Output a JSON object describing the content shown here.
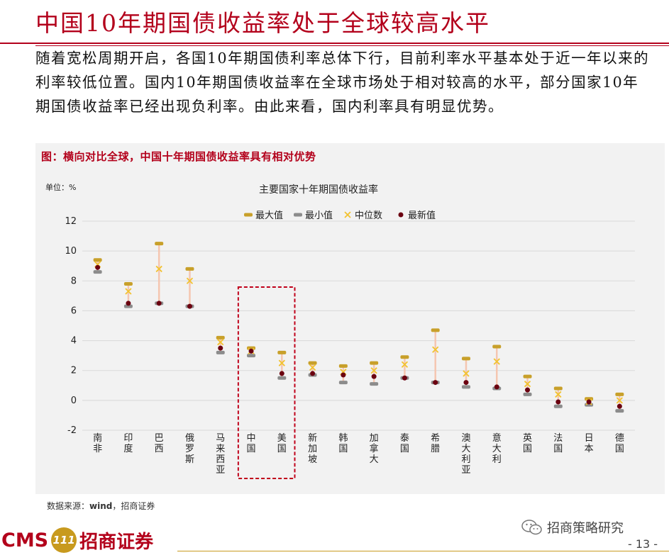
{
  "header": {
    "title": "中国10年期国债收益率处于全球较高水平"
  },
  "intro": {
    "paragraph": "随着宽松周期开启，各国10年期国债利率总体下行，目前利率水平基本处于近一年以来的利率较低位置。国内10年期国债收益率在全球市场处于相对较高的水平，部分国家10年期国债收益率已经出现负利率。由此来看，国内利率具有明显优势。"
  },
  "figure": {
    "caption": "图：横向对比全球，中国十年期国债收益率具有相对优势",
    "unit": "单位：%",
    "source_prefix": "数据来源：",
    "source_bold": "wind",
    "source_suffix": "，招商证券"
  },
  "chart_data": {
    "type": "scatter",
    "title": "主要国家十年期国债收益率",
    "ylim": [
      -2,
      12
    ],
    "yticks": [
      -2,
      0,
      2,
      4,
      6,
      8,
      10,
      12
    ],
    "grid": true,
    "legend_position": "top",
    "categories": [
      "南非",
      "印度",
      "巴西",
      "俄罗斯",
      "马来西亚",
      "中国",
      "美国",
      "新加坡",
      "韩国",
      "加拿大",
      "泰国",
      "希腊",
      "澳大利亚",
      "意大利",
      "英国",
      "法国",
      "日本",
      "德国"
    ],
    "series": [
      {
        "name": "最大值",
        "values": [
          9.4,
          7.8,
          10.5,
          8.8,
          4.2,
          3.5,
          3.2,
          2.5,
          2.3,
          2.5,
          2.9,
          4.7,
          2.8,
          3.6,
          1.6,
          0.8,
          0.1,
          0.4
        ]
      },
      {
        "name": "最小值",
        "values": [
          8.6,
          6.3,
          6.5,
          6.3,
          3.2,
          3.0,
          1.5,
          1.7,
          1.2,
          1.1,
          1.5,
          1.2,
          0.9,
          0.8,
          0.4,
          -0.4,
          -0.3,
          -0.7
        ]
      },
      {
        "name": "中位数",
        "values": [
          9.1,
          7.3,
          8.8,
          8.0,
          3.9,
          3.3,
          2.5,
          2.2,
          1.9,
          2.0,
          2.4,
          3.4,
          1.8,
          2.6,
          1.1,
          0.4,
          -0.1,
          0.0
        ]
      },
      {
        "name": "最新值",
        "values": [
          8.9,
          6.5,
          6.5,
          6.3,
          3.5,
          3.3,
          1.8,
          1.8,
          1.7,
          1.6,
          1.5,
          1.2,
          1.2,
          0.9,
          0.7,
          -0.1,
          -0.1,
          -0.4
        ]
      }
    ],
    "highlight_categories": [
      "中国",
      "美国"
    ],
    "colors": {
      "max": "#c8a02a",
      "min": "#8c8c8c",
      "median": "#f2c230",
      "latest": "#6b0010",
      "range_line": "#f5c6b0",
      "highlight_box": "#c0001a"
    }
  },
  "footer": {
    "logo_cms": "CMS",
    "logo_badge": "111",
    "logo_cn": "招商证券",
    "wechat_name": "招商策略研究",
    "page_number": "- 13 -"
  }
}
